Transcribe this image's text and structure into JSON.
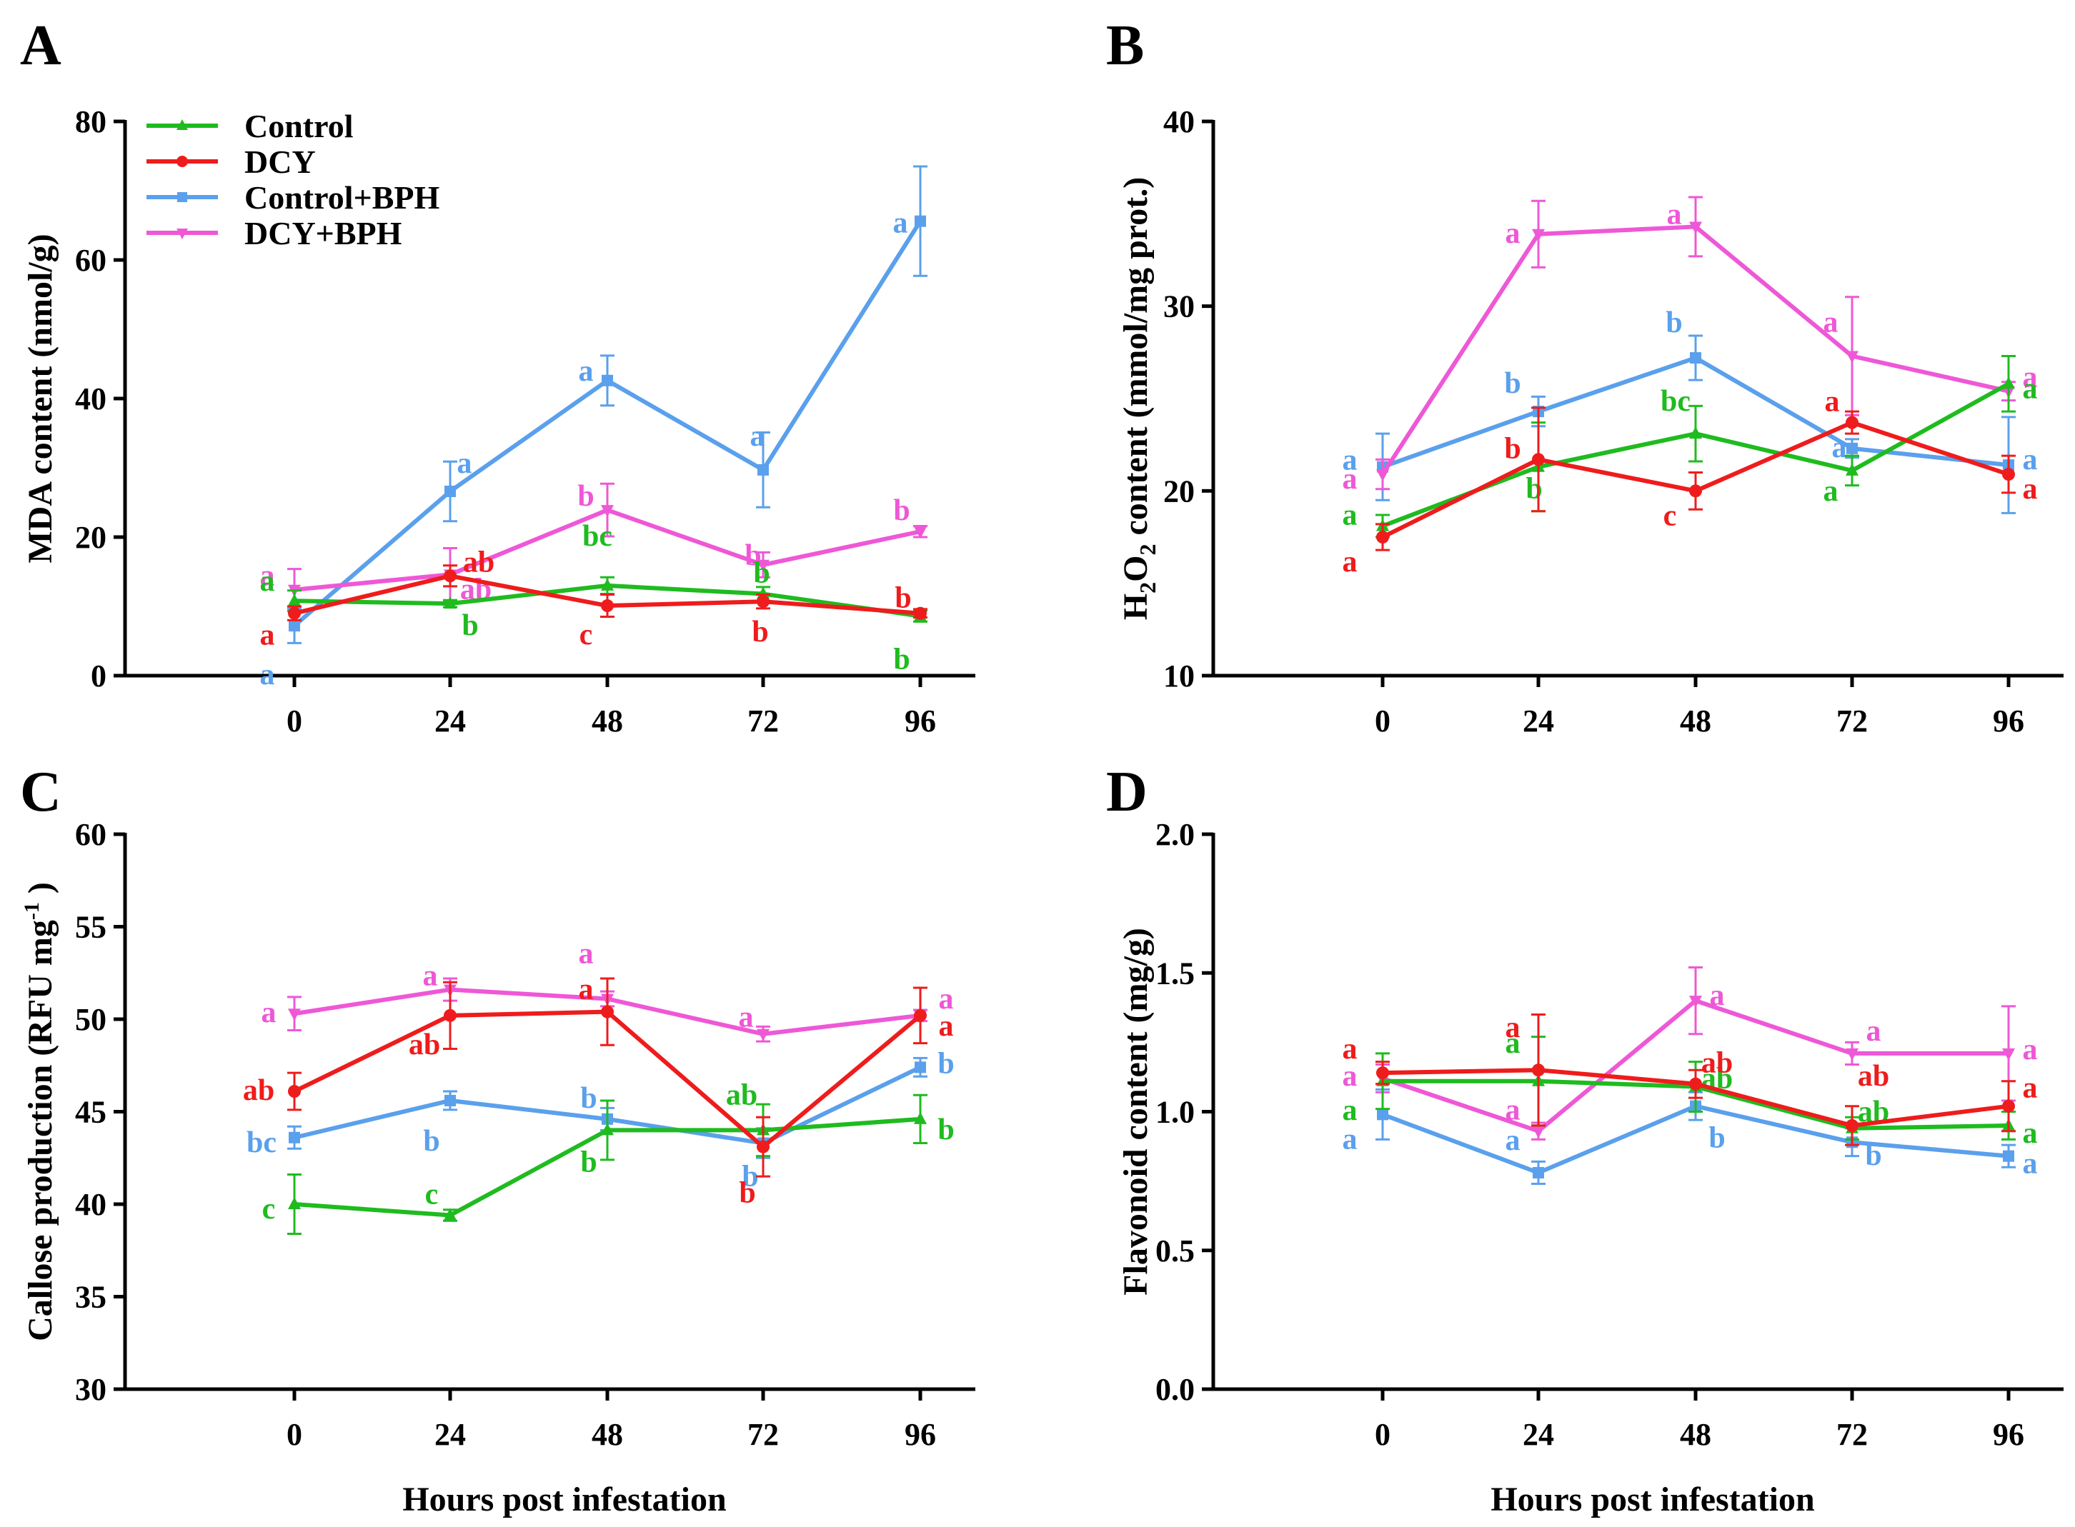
{
  "figure": {
    "series_colors": {
      "Control": "#1fbb1f",
      "DCY": "#ee1c1c",
      "Control+BPH": "#5aa0ec",
      "DCY+BPH": "#ee58d6"
    },
    "legend": [
      "Control",
      "DCY",
      "Control+BPH",
      "DCY+BPH"
    ]
  },
  "chart_data": [
    {
      "panel": "A",
      "type": "line",
      "title": "",
      "xlabel": "",
      "ylabel": "MDA content (nmol/g)",
      "categories": [
        "0",
        "24",
        "48",
        "72",
        "96"
      ],
      "ylim": [
        0,
        80
      ],
      "yticks": [
        "0",
        "20",
        "40",
        "60",
        "80"
      ],
      "series": [
        {
          "name": "Control",
          "values": [
            10.8,
            10.4,
            13.0,
            11.8,
            8.6
          ],
          "errors": [
            1.5,
            0.5,
            1.2,
            1.0,
            0.8
          ],
          "letters": [
            "a",
            "b",
            "bc",
            "b",
            "b"
          ]
        },
        {
          "name": "DCY",
          "values": [
            9.0,
            14.4,
            10.1,
            10.7,
            9.0
          ],
          "errors": [
            1.0,
            1.5,
            1.6,
            1.0,
            0.6
          ],
          "letters": [
            "a",
            "ab",
            "c",
            "b",
            "b"
          ]
        },
        {
          "name": "Control+BPH",
          "values": [
            7.2,
            26.6,
            42.6,
            29.7,
            65.6
          ],
          "errors": [
            2.5,
            4.3,
            3.6,
            5.4,
            7.9
          ],
          "letters": [
            "a",
            "a",
            "a",
            "a",
            "a"
          ]
        },
        {
          "name": "DCY+BPH",
          "values": [
            12.4,
            14.6,
            23.9,
            16.0,
            20.8
          ],
          "errors": [
            3.0,
            3.8,
            3.8,
            1.8,
            0.8
          ],
          "letters": [
            "a",
            "ab",
            "b",
            "b",
            "b"
          ]
        }
      ]
    },
    {
      "panel": "B",
      "type": "line",
      "title": "",
      "xlabel": "",
      "ylabel": "H2O2 content (mmol/mg prot.)",
      "ylabel_parts": [
        "H",
        "2",
        "O",
        "2",
        " content (mmol/mg prot.)"
      ],
      "categories": [
        "0",
        "24",
        "48",
        "72",
        "96"
      ],
      "ylim": [
        10,
        40
      ],
      "yticks": [
        "10",
        "20",
        "30",
        "40"
      ],
      "series": [
        {
          "name": "Control",
          "values": [
            18.1,
            21.3,
            23.1,
            21.1,
            25.8
          ],
          "errors": [
            0.6,
            2.4,
            1.5,
            0.8,
            1.5
          ],
          "letters": [
            "a",
            "b",
            "bc",
            "a",
            "a"
          ]
        },
        {
          "name": "DCY",
          "values": [
            17.5,
            21.7,
            20.0,
            23.7,
            20.9
          ],
          "errors": [
            0.7,
            2.8,
            1.0,
            0.6,
            1.0
          ],
          "letters": [
            "a",
            "b",
            "c",
            "a",
            "a"
          ]
        },
        {
          "name": "Control+BPH",
          "values": [
            21.3,
            24.3,
            27.2,
            22.3,
            21.4
          ],
          "errors": [
            1.8,
            0.8,
            1.2,
            0.5,
            2.6
          ],
          "letters": [
            "a",
            "b",
            "b",
            "a",
            "a"
          ]
        },
        {
          "name": "DCY+BPH",
          "values": [
            20.9,
            33.9,
            34.3,
            27.3,
            25.4
          ],
          "errors": [
            0.8,
            1.8,
            1.6,
            3.2,
            0.5
          ],
          "letters": [
            "a",
            "a",
            "a",
            "a",
            "a"
          ]
        }
      ]
    },
    {
      "panel": "C",
      "type": "line",
      "title": "",
      "xlabel": "Hours post infestation",
      "ylabel": "Callose production (RFU mg-1)",
      "ylabel_parts": [
        "Callose production (RFU mg",
        "-1",
        " )"
      ],
      "categories": [
        "0",
        "24",
        "48",
        "72",
        "96"
      ],
      "ylim": [
        30,
        60
      ],
      "yticks": [
        "30",
        "35",
        "40",
        "45",
        "50",
        "55",
        "60"
      ],
      "series": [
        {
          "name": "Control",
          "values": [
            40.0,
            39.4,
            44.0,
            44.0,
            44.6
          ],
          "errors": [
            1.6,
            0.3,
            1.6,
            1.4,
            1.3
          ],
          "letters": [
            "c",
            "c",
            "b",
            "ab",
            "b"
          ]
        },
        {
          "name": "DCY",
          "values": [
            46.1,
            50.2,
            50.4,
            43.1,
            50.2
          ],
          "errors": [
            1.0,
            1.8,
            1.8,
            1.6,
            1.5
          ],
          "letters": [
            "ab",
            "ab",
            "a",
            "b",
            "a"
          ]
        },
        {
          "name": "Control+BPH",
          "values": [
            43.6,
            45.6,
            44.6,
            43.3,
            47.4
          ],
          "errors": [
            0.6,
            0.5,
            0.6,
            0.8,
            0.5
          ],
          "letters": [
            "bc",
            "b",
            "b",
            "b",
            "b"
          ]
        },
        {
          "name": "DCY+BPH",
          "values": [
            50.3,
            51.6,
            51.1,
            49.2,
            50.2
          ],
          "errors": [
            0.9,
            0.6,
            0.4,
            0.4,
            0.3
          ],
          "letters": [
            "a",
            "a",
            "a",
            "a",
            "a"
          ]
        }
      ]
    },
    {
      "panel": "D",
      "type": "line",
      "title": "",
      "xlabel": "Hours post infestation",
      "ylabel": "Flavonoid content (mg/g)",
      "categories": [
        "0",
        "24",
        "48",
        "72",
        "96"
      ],
      "ylim": [
        0.0,
        2.0
      ],
      "yticks": [
        "0.0",
        "0.5",
        "1.0",
        "1.5",
        "2.0"
      ],
      "series": [
        {
          "name": "Control",
          "values": [
            1.11,
            1.11,
            1.09,
            0.94,
            0.95
          ],
          "errors": [
            0.1,
            0.16,
            0.09,
            0.04,
            0.05
          ],
          "letters": [
            "a",
            "a",
            "ab",
            "ab",
            "a"
          ]
        },
        {
          "name": "DCY",
          "values": [
            1.14,
            1.15,
            1.1,
            0.95,
            1.02
          ],
          "errors": [
            0.04,
            0.2,
            0.05,
            0.07,
            0.09
          ],
          "letters": [
            "a",
            "a",
            "ab",
            "ab",
            "a"
          ]
        },
        {
          "name": "Control+BPH",
          "values": [
            0.99,
            0.78,
            1.02,
            0.89,
            0.84
          ],
          "errors": [
            0.09,
            0.04,
            0.05,
            0.05,
            0.04
          ],
          "letters": [
            "a",
            "a",
            "b",
            "b",
            "a"
          ]
        },
        {
          "name": "DCY+BPH",
          "values": [
            1.12,
            0.93,
            1.4,
            1.21,
            1.21
          ],
          "errors": [
            0.05,
            0.03,
            0.12,
            0.04,
            0.17
          ],
          "letters": [
            "a",
            "a",
            "a",
            "a",
            "a"
          ]
        }
      ]
    }
  ]
}
